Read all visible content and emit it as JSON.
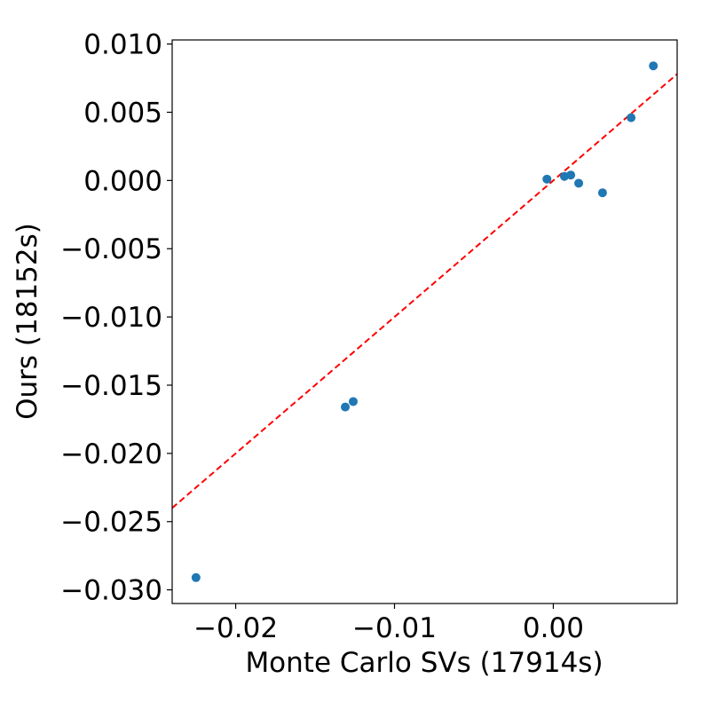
{
  "chart_data": {
    "type": "scatter",
    "xlabel": "Monte Carlo SVs (17914s)",
    "ylabel": "Ours (18152s)",
    "xlim": [
      -0.024,
      0.0078
    ],
    "ylim": [
      -0.031,
      0.0103
    ],
    "x_ticks": [
      -0.02,
      -0.01,
      0.0
    ],
    "x_tick_labels": [
      "−0.02",
      "−0.01",
      "0.00"
    ],
    "y_ticks": [
      0.01,
      0.005,
      0.0,
      -0.005,
      -0.01,
      -0.015,
      -0.02,
      -0.025,
      -0.03
    ],
    "y_tick_labels": [
      "0.010",
      "0.005",
      "0.000",
      "−0.005",
      "−0.010",
      "−0.015",
      "−0.020",
      "−0.025",
      "−0.030"
    ],
    "grid": false,
    "point_color": "#1f77b4",
    "fit_line_color": "#ff0000",
    "fit_line": {
      "style": "dashed",
      "slope": 1,
      "intercept": 0
    },
    "points": [
      {
        "x": -0.0225,
        "y": -0.0291
      },
      {
        "x": -0.0131,
        "y": -0.0166
      },
      {
        "x": -0.0126,
        "y": -0.0162
      },
      {
        "x": -0.0004,
        "y": 0.0001
      },
      {
        "x": 0.0007,
        "y": 0.0003
      },
      {
        "x": 0.0011,
        "y": 0.0004
      },
      {
        "x": 0.0016,
        "y": -0.0002
      },
      {
        "x": 0.0031,
        "y": -0.0009
      },
      {
        "x": 0.0049,
        "y": 0.0046
      },
      {
        "x": 0.0063,
        "y": 0.0084
      }
    ]
  }
}
